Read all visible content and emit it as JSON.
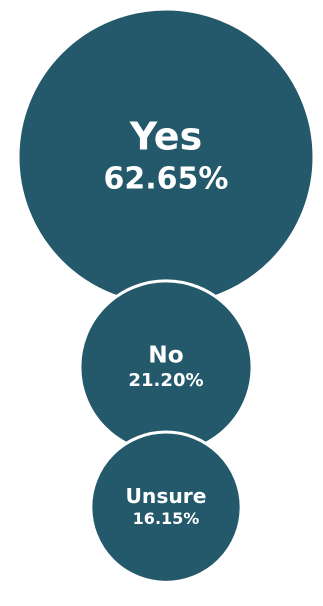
{
  "chart_data": {
    "type": "bubble",
    "categories": [
      "Yes",
      "No",
      "Unsure"
    ],
    "values": [
      62.65,
      21.2,
      16.15
    ],
    "value_labels": [
      "62.65%",
      "21.20%",
      "16.15%"
    ],
    "title": "",
    "xlabel": "",
    "ylabel": "",
    "grid": false,
    "legend": "none"
  },
  "colors": {
    "bubble_fill": "#23596b",
    "text": "#ffffff",
    "background": "#ffffff"
  }
}
